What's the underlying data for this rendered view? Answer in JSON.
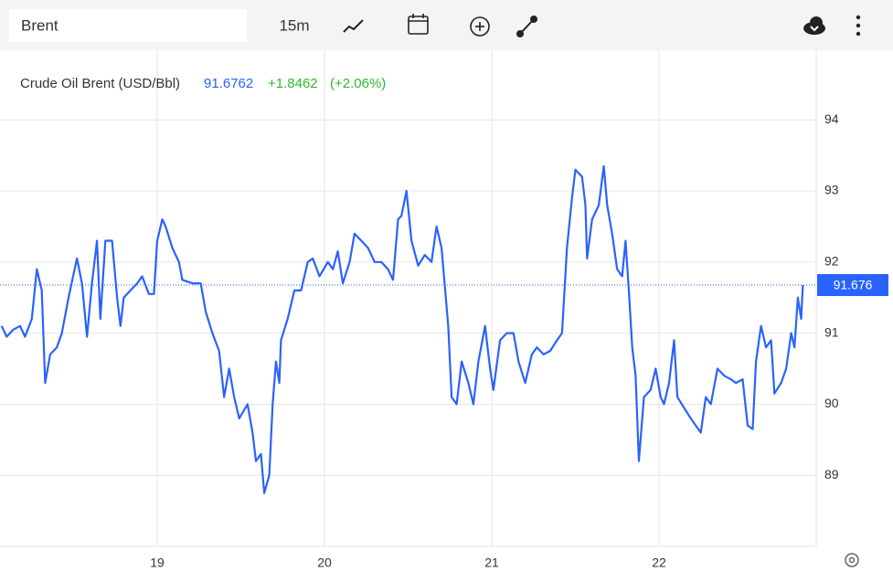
{
  "toolbar": {
    "search": "Brent",
    "interval": "15m"
  },
  "chart_data": {
    "type": "line",
    "title": "Crude Oil Brent (USD/Bbl)",
    "price": "91.6762",
    "change": "+1.8462",
    "change_percent": "(+2.06%)",
    "color": "#2962ff",
    "x": [
      18.07,
      18.1,
      18.14,
      18.18,
      18.21,
      18.25,
      18.28,
      18.31,
      18.33,
      18.36,
      18.4,
      18.43,
      18.47,
      18.52,
      18.55,
      18.58,
      18.61,
      18.64,
      18.66,
      18.69,
      18.73,
      18.76,
      18.78,
      18.8,
      18.84,
      18.88,
      18.91,
      18.95,
      18.98,
      19.0,
      19.03,
      19.05,
      19.09,
      19.13,
      19.15,
      19.21,
      19.26,
      19.29,
      19.33,
      19.37,
      19.4,
      19.43,
      19.46,
      19.49,
      19.54,
      19.57,
      19.59,
      19.62,
      19.64,
      19.67,
      19.69,
      19.71,
      19.73,
      19.74,
      19.78,
      19.82,
      19.86,
      19.9,
      19.93,
      19.97,
      20.02,
      20.05,
      20.08,
      20.11,
      20.15,
      20.18,
      20.22,
      20.26,
      20.3,
      20.34,
      20.38,
      20.41,
      20.44,
      20.46,
      20.49,
      20.52,
      20.56,
      20.6,
      20.64,
      20.67,
      20.7,
      20.74,
      20.76,
      20.79,
      20.82,
      20.86,
      20.89,
      20.92,
      20.96,
      20.99,
      21.01,
      21.05,
      21.09,
      21.13,
      21.16,
      21.2,
      21.24,
      21.27,
      21.31,
      21.35,
      21.39,
      21.42,
      21.45,
      21.48,
      21.5,
      21.54,
      21.56,
      21.57,
      21.6,
      21.64,
      21.67,
      21.69,
      21.72,
      21.75,
      21.78,
      21.8,
      21.82,
      21.84,
      21.86,
      21.88,
      21.91,
      21.95,
      21.98,
      22.01,
      22.03,
      22.06,
      22.09,
      22.11,
      22.15,
      22.19,
      22.22,
      22.25,
      22.28,
      22.31,
      22.35,
      22.39,
      22.43,
      22.46,
      22.5,
      22.53,
      22.56,
      22.58,
      22.61,
      22.64,
      22.67,
      22.69,
      22.73,
      22.76,
      22.79,
      22.81,
      22.83,
      22.85,
      22.86
    ],
    "values": [
      91.1,
      90.95,
      91.05,
      91.1,
      90.95,
      91.2,
      91.9,
      91.6,
      90.3,
      90.7,
      90.8,
      91.0,
      91.5,
      92.05,
      91.7,
      90.95,
      91.7,
      92.3,
      91.2,
      92.3,
      92.3,
      91.5,
      91.1,
      91.5,
      91.6,
      91.7,
      91.8,
      91.55,
      91.55,
      92.3,
      92.6,
      92.5,
      92.2,
      92.0,
      91.75,
      91.7,
      91.7,
      91.3,
      91.0,
      90.75,
      90.1,
      90.5,
      90.1,
      89.8,
      90.0,
      89.6,
      89.2,
      89.3,
      88.75,
      89.0,
      90.0,
      90.6,
      90.3,
      90.9,
      91.2,
      91.6,
      91.6,
      92.0,
      92.05,
      91.8,
      92.0,
      91.9,
      92.15,
      91.7,
      92.0,
      92.4,
      92.3,
      92.2,
      92.0,
      92.0,
      91.9,
      91.75,
      92.6,
      92.65,
      93.0,
      92.3,
      91.95,
      92.1,
      92.0,
      92.5,
      92.2,
      91.1,
      90.1,
      90.0,
      90.6,
      90.3,
      90.0,
      90.6,
      91.1,
      90.5,
      90.2,
      90.9,
      91.0,
      91.0,
      90.6,
      90.3,
      90.7,
      90.8,
      90.7,
      90.75,
      90.9,
      91.0,
      92.2,
      92.9,
      93.3,
      93.2,
      92.8,
      92.05,
      92.6,
      92.8,
      93.35,
      92.8,
      92.4,
      91.9,
      91.8,
      92.3,
      91.6,
      90.8,
      90.4,
      89.2,
      90.1,
      90.2,
      90.5,
      90.1,
      90.0,
      90.3,
      90.9,
      90.1,
      89.95,
      89.8,
      89.7,
      89.6,
      90.1,
      90.0,
      90.5,
      90.4,
      90.35,
      90.3,
      90.35,
      89.7,
      89.65,
      90.6,
      91.1,
      90.8,
      90.9,
      90.15,
      90.3,
      90.5,
      91.0,
      90.8,
      91.5,
      91.2,
      91.676
    ],
    "last_price": 91.676,
    "xlim": [
      18.06,
      22.94
    ],
    "xticks": [
      19,
      20,
      21,
      22
    ],
    "ylim": [
      88,
      95
    ],
    "yticks": [
      89,
      90,
      91,
      92,
      93,
      94
    ],
    "grid": true
  }
}
